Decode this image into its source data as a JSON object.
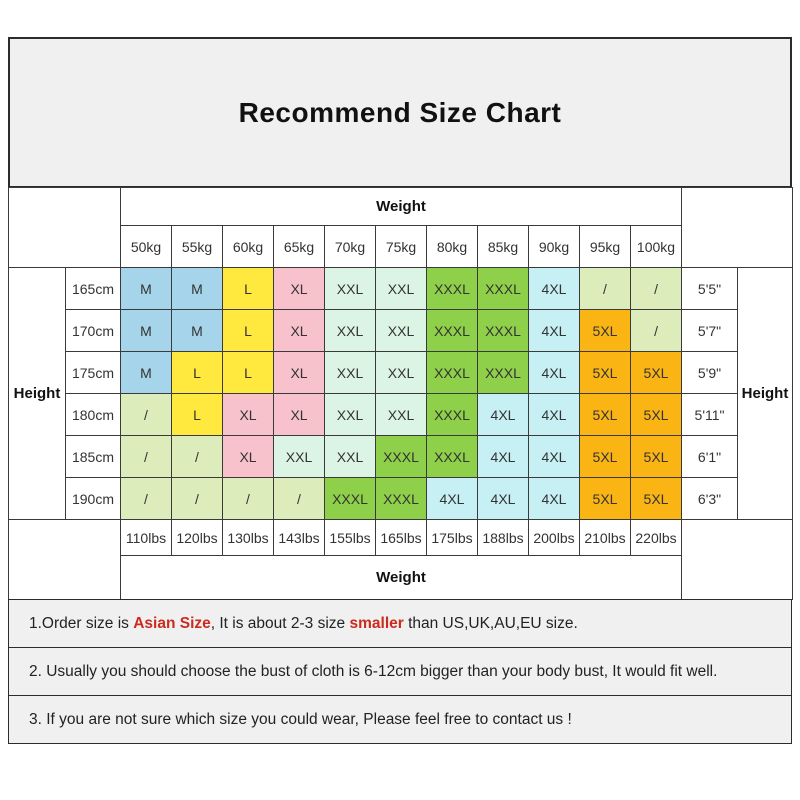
{
  "title": "Recommend Size Chart",
  "table": {
    "weight_header_top": "Weight",
    "weight_header_bottom": "Weight",
    "height_label_left": "Height",
    "height_label_right": "Height",
    "weights_kg": [
      "50kg",
      "55kg",
      "60kg",
      "65kg",
      "70kg",
      "75kg",
      "80kg",
      "85kg",
      "90kg",
      "95kg",
      "100kg"
    ],
    "weights_lbs": [
      "110lbs",
      "120lbs",
      "130lbs",
      "143lbs",
      "155lbs",
      "165lbs",
      "175lbs",
      "188lbs",
      "200lbs",
      "210lbs",
      "220lbs"
    ],
    "rows": [
      {
        "cm": "165cm",
        "imperial": "5'5\"",
        "sizes": [
          "M",
          "M",
          "L",
          "XL",
          "XXL",
          "XXL",
          "XXXL",
          "XXXL",
          "4XL",
          "/",
          "/"
        ]
      },
      {
        "cm": "170cm",
        "imperial": "5'7\"",
        "sizes": [
          "M",
          "M",
          "L",
          "XL",
          "XXL",
          "XXL",
          "XXXL",
          "XXXL",
          "4XL",
          "5XL",
          "/"
        ]
      },
      {
        "cm": "175cm",
        "imperial": "5'9\"",
        "sizes": [
          "M",
          "L",
          "L",
          "XL",
          "XXL",
          "XXL",
          "XXXL",
          "XXXL",
          "4XL",
          "5XL",
          "5XL"
        ]
      },
      {
        "cm": "180cm",
        "imperial": "5'11\"",
        "sizes": [
          "/",
          "L",
          "XL",
          "XL",
          "XXL",
          "XXL",
          "XXXL",
          "4XL",
          "4XL",
          "5XL",
          "5XL"
        ]
      },
      {
        "cm": "185cm",
        "imperial": "6'1\"",
        "sizes": [
          "/",
          "/",
          "XL",
          "XXL",
          "XXL",
          "XXXL",
          "XXXL",
          "4XL",
          "4XL",
          "5XL",
          "5XL"
        ]
      },
      {
        "cm": "190cm",
        "imperial": "6'3\"",
        "sizes": [
          "/",
          "/",
          "/",
          "/",
          "XXXL",
          "XXXL",
          "4XL",
          "4XL",
          "4XL",
          "5XL",
          "5XL"
        ]
      }
    ],
    "size_colors": {
      "M": "#a6d4ea",
      "L": "#ffe93e",
      "XL": "#f8c2cd",
      "XXL": "#dcf4e3",
      "XXXL": "#8fd04a",
      "4XL": "#c7f0f4",
      "5XL": "#fab515",
      "/": "#dcecba"
    }
  },
  "notes": [
    {
      "segments": [
        {
          "text": "1.Order size is ",
          "em": false
        },
        {
          "text": "Asian Size",
          "em": true
        },
        {
          "text": ", It is about 2-3 size ",
          "em": false
        },
        {
          "text": "smaller",
          "em": true
        },
        {
          "text": " than US,UK,AU,EU size.",
          "em": false
        }
      ]
    },
    {
      "segments": [
        {
          "text": "2. Usually you should choose the bust of cloth is 6-12cm bigger than your body bust, It would fit well.",
          "em": false
        }
      ]
    },
    {
      "segments": [
        {
          "text": "3. If you are not sure which size you could wear, Please feel free to contact us !",
          "em": false
        }
      ]
    }
  ],
  "colors": {
    "accent_red": "#cc2a1e",
    "panel_bg": "#f0f0f0",
    "grid_line": "#3a3a3a"
  }
}
